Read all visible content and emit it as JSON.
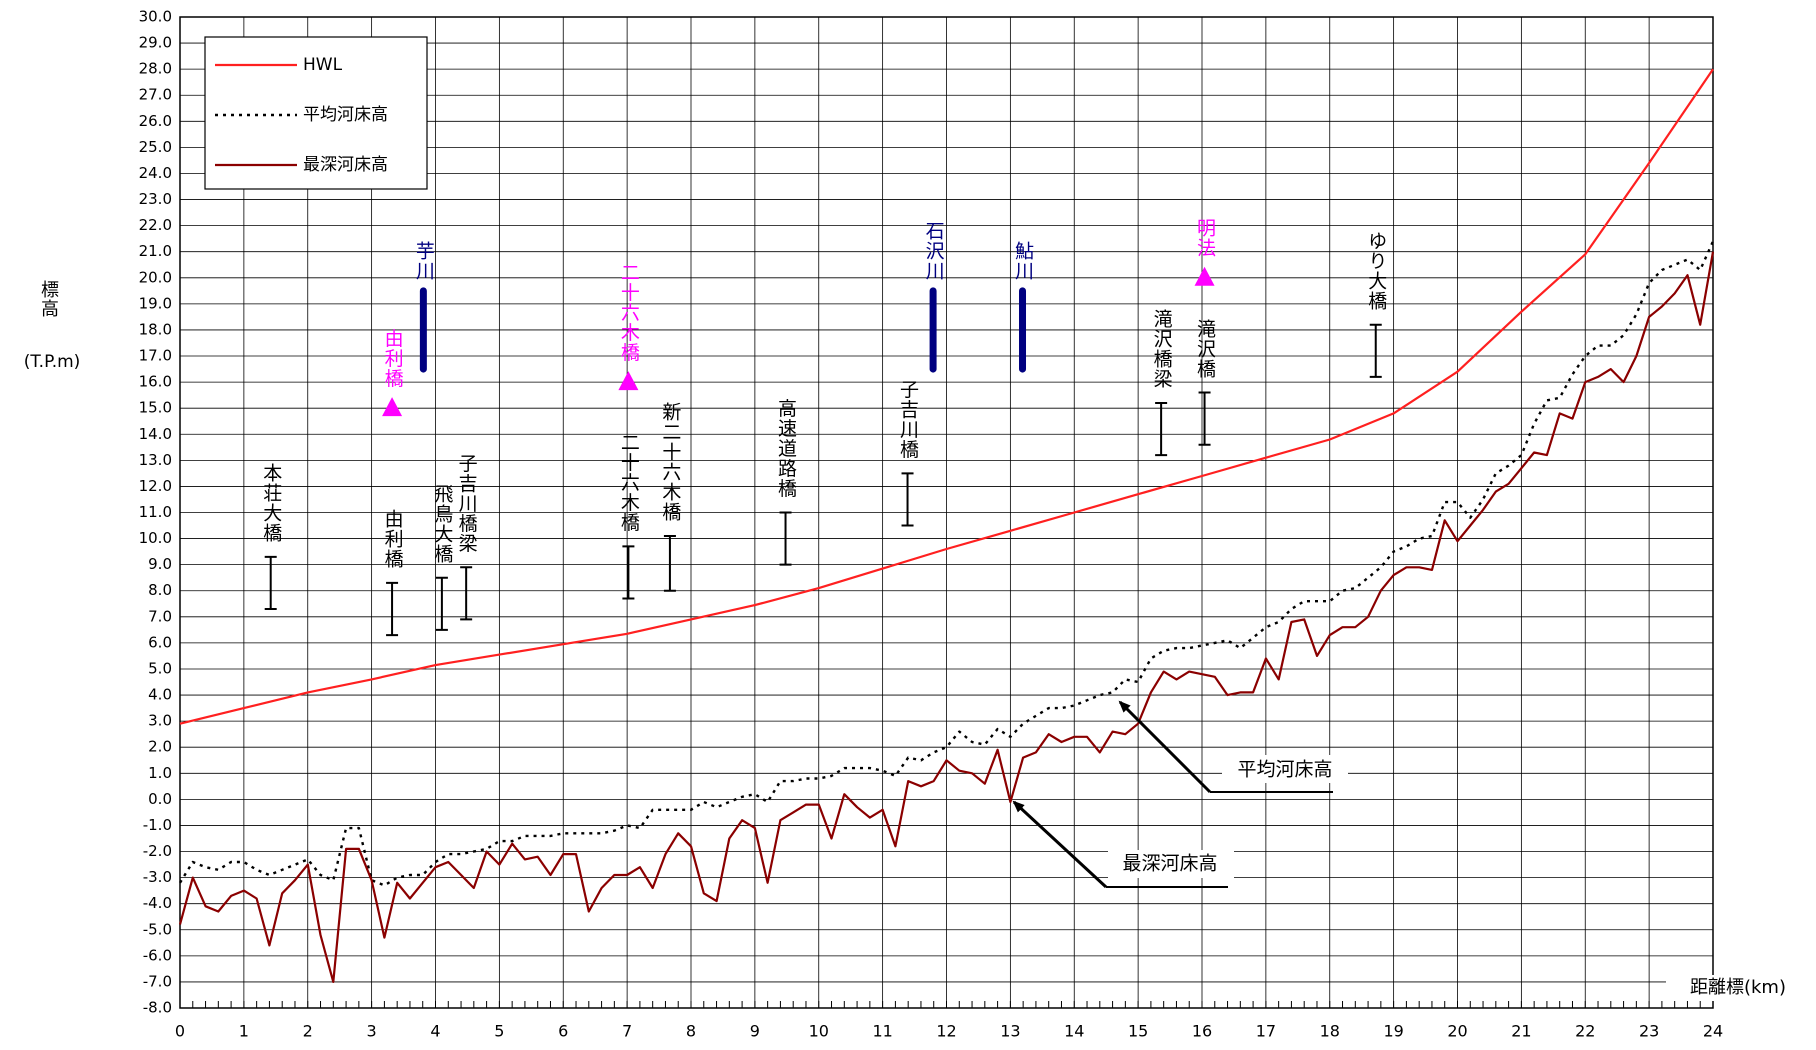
{
  "chart_data": {
    "type": "line",
    "x_label": "距離標(km)",
    "y_label": "標高",
    "y_unit": "(T.P.m)",
    "xlim": [
      0,
      24
    ],
    "ylim": [
      -8,
      30
    ],
    "xticks": [
      0,
      1,
      2,
      3,
      4,
      5,
      6,
      7,
      8,
      9,
      10,
      11,
      12,
      13,
      14,
      15,
      16,
      17,
      18,
      19,
      20,
      21,
      22,
      23,
      24
    ],
    "yticks": [
      {
        "value": -8,
        "label": "-8.0"
      },
      {
        "value": -7,
        "label": "-7.0"
      },
      {
        "value": -6,
        "label": "-6.0"
      },
      {
        "value": -5,
        "label": "-5.0"
      },
      {
        "value": -4,
        "label": "-4.0"
      },
      {
        "value": -3,
        "label": "-3.0"
      },
      {
        "value": -2,
        "label": "-2.0"
      },
      {
        "value": -1,
        "label": "-1.0"
      },
      {
        "value": 0,
        "label": "0.0"
      },
      {
        "value": 1,
        "label": "1.0"
      },
      {
        "value": 2,
        "label": "2.0"
      },
      {
        "value": 3,
        "label": "3.0"
      },
      {
        "value": 4,
        "label": "4.0"
      },
      {
        "value": 5,
        "label": "5.0"
      },
      {
        "value": 6,
        "label": "6.0"
      },
      {
        "value": 7,
        "label": "7.0"
      },
      {
        "value": 8,
        "label": "8.0"
      },
      {
        "value": 9,
        "label": "9.0"
      },
      {
        "value": 10,
        "label": "10.0"
      },
      {
        "value": 11,
        "label": "11.0"
      },
      {
        "value": 12,
        "label": "12.0"
      },
      {
        "value": 13,
        "label": "13.0"
      },
      {
        "value": 14,
        "label": "14.0"
      },
      {
        "value": 15,
        "label": "15.0"
      },
      {
        "value": 16,
        "label": "16.0"
      },
      {
        "value": 17,
        "label": "17.0"
      },
      {
        "value": 18,
        "label": "18.0"
      },
      {
        "value": 19,
        "label": "19.0"
      },
      {
        "value": 20,
        "label": "20.0"
      },
      {
        "value": 21,
        "label": "21.0"
      },
      {
        "value": 22,
        "label": "22.0"
      },
      {
        "value": 23,
        "label": "23.0"
      },
      {
        "value": 24,
        "label": "24.0"
      },
      {
        "value": 25,
        "label": "25.0"
      },
      {
        "value": 26,
        "label": "26.0"
      },
      {
        "value": 27,
        "label": "27.0"
      },
      {
        "value": 28,
        "label": "28.0"
      },
      {
        "value": 29,
        "label": "29.0"
      },
      {
        "value": 30,
        "label": "30.0"
      }
    ],
    "grid": true,
    "legend": "upper left",
    "x": [
      0,
      0.2,
      0.4,
      0.6,
      0.8,
      1,
      1.2,
      1.4,
      1.6,
      1.8,
      2,
      2.2,
      2.4,
      2.6,
      2.8,
      3,
      3.2,
      3.4,
      3.6,
      3.8,
      4,
      4.2,
      4.4,
      4.6,
      4.8,
      5,
      5.2,
      5.4,
      5.6,
      5.8,
      6,
      6.2,
      6.4,
      6.6,
      6.8,
      7,
      7.2,
      7.4,
      7.6,
      7.8,
      8,
      8.2,
      8.4,
      8.6,
      8.8,
      9,
      9.2,
      9.4,
      9.6,
      9.8,
      10,
      10.2,
      10.4,
      10.6,
      10.8,
      11,
      11.2,
      11.4,
      11.6,
      11.8,
      12,
      12.2,
      12.4,
      12.6,
      12.8,
      13,
      13.2,
      13.4,
      13.6,
      13.8,
      14,
      14.2,
      14.4,
      14.6,
      14.8,
      15,
      15.2,
      15.4,
      15.6,
      15.8,
      16,
      16.2,
      16.4,
      16.6,
      16.8,
      17,
      17.2,
      17.4,
      17.6,
      17.8,
      18,
      18.2,
      18.4,
      18.6,
      18.8,
      19,
      19.2,
      19.4,
      19.6,
      19.8,
      20,
      20.2,
      20.4,
      20.6,
      20.8,
      21,
      21.2,
      21.4,
      21.6,
      21.8,
      22,
      22.2,
      22.4,
      22.6,
      22.8,
      23,
      23.2,
      23.4,
      23.6,
      23.8,
      24
    ],
    "series": [
      {
        "name": "HWL",
        "color": "#ff2020",
        "style": "solid",
        "x": [
          0,
          1,
          2,
          3,
          4,
          5,
          6,
          7,
          8,
          9,
          10,
          11,
          12,
          13,
          14,
          15,
          16,
          17,
          18,
          19,
          20,
          21,
          22,
          23,
          24
        ],
        "values": [
          2.9,
          3.5,
          4.1,
          4.6,
          5.15,
          5.55,
          5.95,
          6.35,
          6.9,
          7.45,
          8.1,
          8.85,
          9.6,
          10.3,
          11.0,
          11.7,
          12.4,
          13.1,
          13.8,
          14.8,
          16.4,
          18.7,
          20.9,
          24.4,
          28.0
        ]
      },
      {
        "name": "平均河床高",
        "color": "#000000",
        "style": "dotted",
        "values": [
          -3.2,
          -2.4,
          -2.6,
          -2.7,
          -2.4,
          -2.4,
          -2.7,
          -2.9,
          -2.7,
          -2.5,
          -2.3,
          -2.9,
          -3.1,
          -1.1,
          -1.1,
          -3.1,
          -3.3,
          -3.0,
          -2.9,
          -2.9,
          -2.4,
          -2.1,
          -2.1,
          -2.0,
          -1.9,
          -1.6,
          -1.6,
          -1.4,
          -1.4,
          -1.4,
          -1.3,
          -1.3,
          -1.3,
          -1.3,
          -1.2,
          -1.0,
          -1.1,
          -0.4,
          -0.4,
          -0.4,
          -0.4,
          -0.1,
          -0.3,
          -0.1,
          0.1,
          0.2,
          -0.1,
          0.7,
          0.7,
          0.8,
          0.8,
          0.9,
          1.2,
          1.2,
          1.2,
          1.1,
          0.9,
          1.6,
          1.5,
          1.8,
          2.0,
          2.6,
          2.2,
          2.1,
          2.7,
          2.4,
          2.9,
          3.2,
          3.5,
          3.5,
          3.6,
          3.8,
          4.0,
          4.1,
          4.6,
          4.5,
          5.4,
          5.7,
          5.8,
          5.8,
          5.9,
          6.0,
          6.1,
          5.8,
          6.2,
          6.6,
          6.8,
          7.3,
          7.6,
          7.6,
          7.6,
          8.0,
          8.1,
          8.5,
          8.9,
          9.5,
          9.7,
          10.0,
          10.1,
          11.4,
          11.4,
          10.8,
          11.5,
          12.5,
          12.8,
          13.2,
          14.4,
          15.3,
          15.4,
          16.3,
          17.0,
          17.4,
          17.4,
          17.8,
          18.6,
          19.8,
          20.3,
          20.5,
          20.7,
          20.3,
          21.4
        ]
      },
      {
        "name": "最深河床高",
        "color": "#8b0000",
        "style": "solid",
        "values": [
          -4.8,
          -3.0,
          -4.1,
          -4.3,
          -3.7,
          -3.5,
          -3.8,
          -5.6,
          -3.6,
          -3.1,
          -2.5,
          -5.2,
          -7.0,
          -1.9,
          -1.9,
          -3.1,
          -5.3,
          -3.2,
          -3.8,
          -3.2,
          -2.6,
          -2.4,
          -2.9,
          -3.4,
          -2.0,
          -2.5,
          -1.7,
          -2.3,
          -2.2,
          -2.9,
          -2.1,
          -2.1,
          -4.3,
          -3.4,
          -2.9,
          -2.9,
          -2.6,
          -3.4,
          -2.1,
          -1.3,
          -1.8,
          -3.6,
          -3.9,
          -1.5,
          -0.8,
          -1.1,
          -3.2,
          -0.8,
          -0.5,
          -0.2,
          -0.2,
          -1.5,
          0.2,
          -0.3,
          -0.7,
          -0.4,
          -1.8,
          0.7,
          0.5,
          0.7,
          1.5,
          1.1,
          1.0,
          0.6,
          1.9,
          -0.1,
          1.6,
          1.8,
          2.5,
          2.2,
          2.4,
          2.4,
          1.8,
          2.6,
          2.5,
          2.9,
          4.1,
          4.9,
          4.6,
          4.9,
          4.8,
          4.7,
          4.0,
          4.1,
          4.1,
          5.4,
          4.6,
          6.8,
          6.9,
          5.5,
          6.3,
          6.6,
          6.6,
          7.0,
          8.0,
          8.6,
          8.9,
          8.9,
          8.8,
          10.7,
          9.9,
          10.5,
          11.1,
          11.8,
          12.1,
          12.7,
          13.3,
          13.2,
          14.8,
          14.6,
          16.0,
          16.2,
          16.5,
          16.0,
          17.0,
          18.5,
          18.9,
          19.4,
          20.1,
          18.2,
          21.0
        ]
      }
    ],
    "bridges": [
      {
        "label": "本荘大橋",
        "x": 1.42,
        "low": 7.3,
        "high": 9.3
      },
      {
        "label": "由利橋",
        "x": 3.32,
        "low": 6.3,
        "high": 8.3
      },
      {
        "label": "飛鳥大橋",
        "x": 4.1,
        "low": 6.5,
        "high": 8.5
      },
      {
        "label": "子吉川橋梁",
        "x": 4.48,
        "low": 6.9,
        "high": 8.9
      },
      {
        "label": "二十六木橋",
        "x": 7.02,
        "low": 7.7,
        "high": 9.7
      },
      {
        "label": "新二十六木橋",
        "x": 7.67,
        "low": 8.0,
        "high": 10.1
      },
      {
        "label": "高速道路橋",
        "x": 9.48,
        "low": 9.0,
        "high": 11.0
      },
      {
        "label": "子吉川橋",
        "x": 11.39,
        "low": 10.5,
        "high": 12.5
      },
      {
        "label": "滝沢橋梁",
        "x": 15.36,
        "low": 13.2,
        "high": 15.2
      },
      {
        "label": "滝沢橋",
        "x": 16.04,
        "low": 13.6,
        "high": 15.6
      },
      {
        "label": "ゆり大橋",
        "x": 18.72,
        "low": 16.2,
        "high": 18.2
      }
    ],
    "tributaries": [
      {
        "label": "芋川",
        "x": 3.81,
        "low": 16.5,
        "high": 19.5,
        "color": "#000080"
      },
      {
        "label": "石沢川",
        "x": 11.79,
        "low": 16.5,
        "high": 19.5,
        "color": "#000080"
      },
      {
        "label": "鮎川",
        "x": 13.19,
        "low": 16.5,
        "high": 19.5,
        "color": "#000080"
      }
    ],
    "landmarks": [
      {
        "label": "由利橋",
        "x": 3.32,
        "y": 15.0,
        "color": "#ff00ff"
      },
      {
        "label": "二十六木橋",
        "x": 7.02,
        "y": 16.0,
        "color": "#ff00ff"
      },
      {
        "label": "明法",
        "x": 16.04,
        "y": 20.0,
        "color": "#ff00ff"
      }
    ],
    "annotations": [
      {
        "text": "平均河床高"
      },
      {
        "text": "最深河床高"
      }
    ]
  }
}
